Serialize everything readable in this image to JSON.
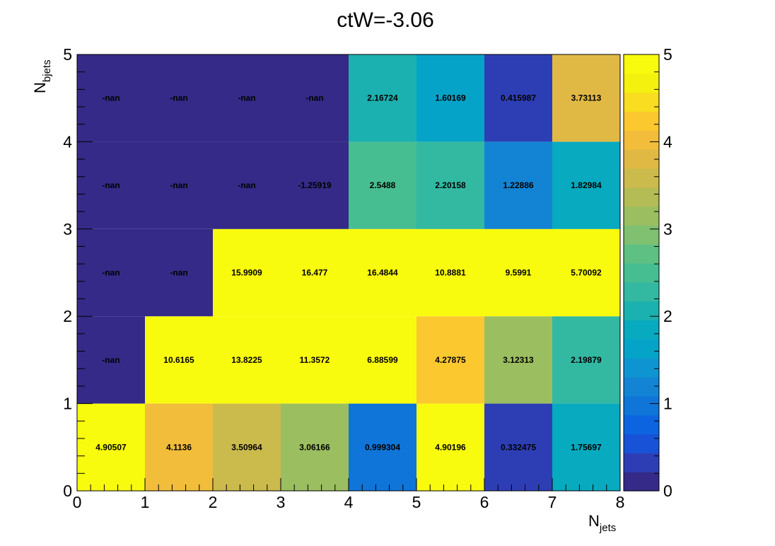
{
  "chart_data": {
    "type": "heatmap",
    "title": "ctW=-3.06",
    "xlabel": {
      "main": "N",
      "sub": "jets"
    },
    "ylabel": {
      "main": "N",
      "sub": "bjets"
    },
    "x_edges": [
      0,
      1,
      2,
      3,
      4,
      5,
      6,
      7,
      8
    ],
    "y_edges": [
      0,
      1,
      2,
      3,
      4,
      5
    ],
    "x_ticks": [
      "0",
      "1",
      "2",
      "3",
      "4",
      "5",
      "6",
      "7",
      "8"
    ],
    "y_ticks": [
      "0",
      "1",
      "2",
      "3",
      "4",
      "5"
    ],
    "xlim": [
      0,
      8
    ],
    "ylim": [
      0,
      5
    ],
    "zlim": [
      0,
      5
    ],
    "colorbar_ticks": [
      "0",
      "1",
      "2",
      "3",
      "4",
      "5"
    ],
    "grid": false,
    "cells": [
      {
        "x": 0,
        "y": 0,
        "value": 4.90507,
        "label": "4.90507"
      },
      {
        "x": 1,
        "y": 0,
        "value": 4.1136,
        "label": "4.1136"
      },
      {
        "x": 2,
        "y": 0,
        "value": 3.50964,
        "label": "3.50964"
      },
      {
        "x": 3,
        "y": 0,
        "value": 3.06166,
        "label": "3.06166"
      },
      {
        "x": 4,
        "y": 0,
        "value": 0.999304,
        "label": "0.999304"
      },
      {
        "x": 5,
        "y": 0,
        "value": 4.90196,
        "label": "4.90196"
      },
      {
        "x": 6,
        "y": 0,
        "value": 0.332475,
        "label": "0.332475"
      },
      {
        "x": 7,
        "y": 0,
        "value": 1.75697,
        "label": "1.75697"
      },
      {
        "x": 0,
        "y": 1,
        "value": null,
        "label": "-nan"
      },
      {
        "x": 1,
        "y": 1,
        "value": 10.6165,
        "label": "10.6165"
      },
      {
        "x": 2,
        "y": 1,
        "value": 13.8225,
        "label": "13.8225"
      },
      {
        "x": 3,
        "y": 1,
        "value": 11.3572,
        "label": "11.3572"
      },
      {
        "x": 4,
        "y": 1,
        "value": 6.88599,
        "label": "6.88599"
      },
      {
        "x": 5,
        "y": 1,
        "value": 4.27875,
        "label": "4.27875"
      },
      {
        "x": 6,
        "y": 1,
        "value": 3.12313,
        "label": "3.12313"
      },
      {
        "x": 7,
        "y": 1,
        "value": 2.19879,
        "label": "2.19879"
      },
      {
        "x": 0,
        "y": 2,
        "value": null,
        "label": "-nan"
      },
      {
        "x": 1,
        "y": 2,
        "value": null,
        "label": "-nan"
      },
      {
        "x": 2,
        "y": 2,
        "value": 15.9909,
        "label": "15.9909"
      },
      {
        "x": 3,
        "y": 2,
        "value": 16.477,
        "label": "16.477"
      },
      {
        "x": 4,
        "y": 2,
        "value": 16.4844,
        "label": "16.4844"
      },
      {
        "x": 5,
        "y": 2,
        "value": 10.8881,
        "label": "10.8881"
      },
      {
        "x": 6,
        "y": 2,
        "value": 9.5991,
        "label": "9.5991"
      },
      {
        "x": 7,
        "y": 2,
        "value": 5.70092,
        "label": "5.70092"
      },
      {
        "x": 0,
        "y": 3,
        "value": null,
        "label": "-nan"
      },
      {
        "x": 1,
        "y": 3,
        "value": null,
        "label": "-nan"
      },
      {
        "x": 2,
        "y": 3,
        "value": null,
        "label": "-nan"
      },
      {
        "x": 3,
        "y": 3,
        "value": -1.25919,
        "label": "-1.25919"
      },
      {
        "x": 4,
        "y": 3,
        "value": 2.5488,
        "label": "2.5488"
      },
      {
        "x": 5,
        "y": 3,
        "value": 2.20158,
        "label": "2.20158"
      },
      {
        "x": 6,
        "y": 3,
        "value": 1.22886,
        "label": "1.22886"
      },
      {
        "x": 7,
        "y": 3,
        "value": 1.82984,
        "label": "1.82984"
      },
      {
        "x": 0,
        "y": 4,
        "value": null,
        "label": "-nan"
      },
      {
        "x": 1,
        "y": 4,
        "value": null,
        "label": "-nan"
      },
      {
        "x": 2,
        "y": 4,
        "value": null,
        "label": "-nan"
      },
      {
        "x": 3,
        "y": 4,
        "value": null,
        "label": "-nan"
      },
      {
        "x": 4,
        "y": 4,
        "value": 2.16724,
        "label": "2.16724"
      },
      {
        "x": 5,
        "y": 4,
        "value": 1.60169,
        "label": "1.60169"
      },
      {
        "x": 6,
        "y": 4,
        "value": 0.415987,
        "label": "0.415987"
      },
      {
        "x": 7,
        "y": 4,
        "value": 3.73113,
        "label": "3.73113"
      }
    ],
    "colormap": [
      "#352a87",
      "#2d3eb5",
      "#1853d7",
      "#0c64e1",
      "#0f75d9",
      "#1384d4",
      "#0e95d1",
      "#06a3c9",
      "#07aabf",
      "#1bb1b0",
      "#33b8a1",
      "#47bd92",
      "#5fc083",
      "#7fc071",
      "#9bbe61",
      "#b4bc56",
      "#cbba4c",
      "#e0b945",
      "#f1bd3b",
      "#fbc830",
      "#f9dd20",
      "#f5f10f",
      "#f9fb0e"
    ],
    "nan_color": "#352a87"
  }
}
